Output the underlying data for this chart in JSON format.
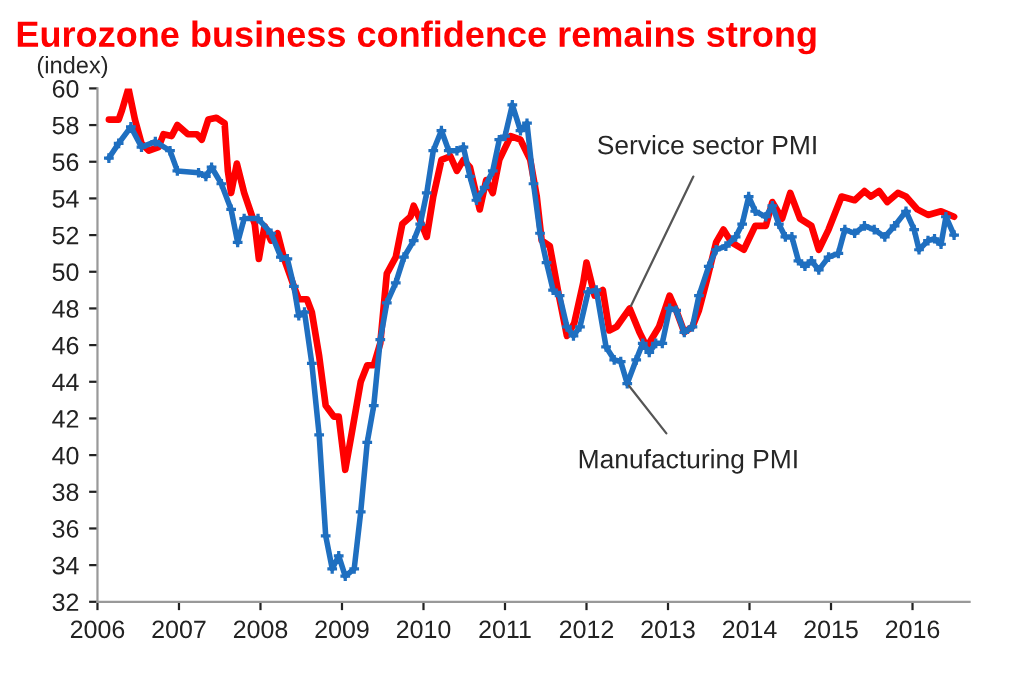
{
  "chart_data": {
    "type": "line",
    "title": "Eurozone business confidence remains strong",
    "ylabel": "(index)",
    "xlim": [
      2006,
      2016.7
    ],
    "xticks": [
      2006,
      2007,
      2008,
      2009,
      2010,
      2011,
      2012,
      2013,
      2014,
      2015,
      2016
    ],
    "ylim": [
      32,
      60
    ],
    "yticks": [
      32,
      34,
      36,
      38,
      40,
      42,
      44,
      46,
      48,
      50,
      52,
      54,
      56,
      58,
      60
    ],
    "grid": false,
    "line_style": "solid",
    "annotations": [
      {
        "text": "Service sector PMI",
        "x": 2012.53,
        "y": 48.0
      },
      {
        "text": "Manufacturing PMI",
        "x": 2012.5,
        "y": 43.9
      }
    ],
    "series": [
      {
        "color": "#ff0000",
        "marker": "none",
        "x": [
          2006.14,
          2006.26,
          2006.3,
          2006.38,
          2006.46,
          2006.54,
          2006.63,
          2006.75,
          2006.81,
          2006.91,
          2006.98,
          2007.11,
          2007.22,
          2007.28,
          2007.36,
          2007.46,
          2007.56,
          2007.6,
          2007.64,
          2007.71,
          2007.8,
          2007.93,
          2007.98,
          2008.05,
          2008.13,
          2008.21,
          2008.29,
          2008.41,
          2008.47,
          2008.57,
          2008.63,
          2008.72,
          2008.8,
          2008.9,
          2008.96,
          2009.04,
          2009.12,
          2009.23,
          2009.31,
          2009.39,
          2009.47,
          2009.55,
          2009.66,
          2009.74,
          2009.84,
          2009.88,
          2009.96,
          2010.04,
          2010.12,
          2010.22,
          2010.33,
          2010.41,
          2010.49,
          2010.57,
          2010.69,
          2010.77,
          2010.85,
          2010.93,
          2011.07,
          2011.19,
          2011.31,
          2011.39,
          2011.45,
          2011.55,
          2011.67,
          2011.76,
          2011.85,
          2011.96,
          2012.0,
          2012.1,
          2012.2,
          2012.28,
          2012.37,
          2012.53,
          2012.65,
          2012.74,
          2012.89,
          2013.02,
          2013.1,
          2013.2,
          2013.3,
          2013.38,
          2013.48,
          2013.59,
          2013.68,
          2013.78,
          2013.93,
          2014.07,
          2014.2,
          2014.28,
          2014.4,
          2014.5,
          2014.62,
          2014.76,
          2014.85,
          2014.97,
          2015.13,
          2015.29,
          2015.41,
          2015.49,
          2015.59,
          2015.69,
          2015.82,
          2015.92,
          2016.06,
          2016.19,
          2016.35,
          2016.51
        ],
        "values": [
          58.3,
          58.3,
          58.8,
          60.0,
          58.3,
          57.0,
          56.6,
          56.8,
          57.5,
          57.4,
          58.0,
          57.5,
          57.5,
          57.2,
          58.3,
          58.4,
          58.1,
          55.5,
          54.3,
          55.9,
          54.3,
          52.6,
          50.7,
          52.5,
          51.7,
          52.1,
          50.7,
          49.2,
          48.5,
          48.5,
          47.8,
          45.4,
          42.7,
          42.1,
          42.1,
          39.2,
          41.2,
          44.0,
          44.9,
          44.9,
          46.1,
          49.9,
          50.8,
          52.6,
          53.0,
          53.6,
          52.8,
          51.9,
          54.1,
          56.1,
          56.3,
          55.5,
          56.1,
          55.7,
          53.4,
          55.0,
          54.3,
          56.1,
          57.4,
          57.2,
          56.1,
          54.1,
          51.7,
          51.4,
          48.5,
          46.5,
          47.2,
          49.4,
          50.5,
          48.7,
          49.0,
          46.8,
          47.0,
          48.0,
          46.7,
          45.9,
          47.0,
          48.7,
          47.9,
          46.7,
          47.0,
          47.9,
          49.6,
          51.6,
          52.3,
          51.6,
          51.2,
          52.5,
          52.5,
          53.8,
          52.9,
          54.3,
          52.9,
          52.5,
          51.2,
          52.3,
          54.1,
          53.9,
          54.4,
          54.1,
          54.4,
          53.8,
          54.3,
          54.1,
          53.4,
          53.1,
          53.3,
          53.0
        ]
      },
      {
        "color": "#1f6fc0",
        "marker": "cross",
        "x": [
          2006.14,
          2006.26,
          2006.41,
          2006.54,
          2006.71,
          2006.89,
          2006.98,
          2007.24,
          2007.33,
          2007.4,
          2007.52,
          2007.64,
          2007.72,
          2007.8,
          2007.97,
          2008.13,
          2008.25,
          2008.33,
          2008.41,
          2008.47,
          2008.54,
          2008.63,
          2008.72,
          2008.8,
          2008.88,
          2008.96,
          2009.04,
          2009.15,
          2009.23,
          2009.31,
          2009.39,
          2009.47,
          2009.55,
          2009.66,
          2009.76,
          2009.88,
          2009.96,
          2010.04,
          2010.12,
          2010.22,
          2010.31,
          2010.41,
          2010.49,
          2010.57,
          2010.65,
          2010.75,
          2010.85,
          2010.93,
          2011.0,
          2011.09,
          2011.19,
          2011.27,
          2011.35,
          2011.43,
          2011.51,
          2011.59,
          2011.67,
          2011.76,
          2011.84,
          2011.92,
          2012.02,
          2012.12,
          2012.24,
          2012.34,
          2012.42,
          2012.5,
          2012.61,
          2012.69,
          2012.77,
          2012.85,
          2012.93,
          2013.02,
          2013.1,
          2013.2,
          2013.3,
          2013.38,
          2013.5,
          2013.59,
          2013.71,
          2013.83,
          2013.91,
          2013.99,
          2014.07,
          2014.2,
          2014.28,
          2014.36,
          2014.44,
          2014.52,
          2014.6,
          2014.68,
          2014.76,
          2014.85,
          2014.97,
          2015.09,
          2015.17,
          2015.29,
          2015.41,
          2015.53,
          2015.66,
          2015.78,
          2015.92,
          2016.02,
          2016.08,
          2016.19,
          2016.27,
          2016.35,
          2016.41,
          2016.51
        ],
        "values": [
          56.2,
          57.0,
          57.9,
          56.8,
          57.1,
          56.6,
          55.5,
          55.4,
          55.2,
          55.7,
          54.8,
          53.4,
          51.6,
          52.9,
          52.9,
          52.1,
          50.8,
          50.7,
          49.2,
          47.6,
          47.8,
          45.0,
          41.1,
          35.6,
          33.8,
          34.5,
          33.4,
          33.8,
          36.9,
          40.7,
          42.7,
          46.3,
          48.3,
          49.4,
          50.8,
          51.7,
          52.6,
          54.3,
          56.6,
          57.7,
          56.6,
          56.6,
          56.8,
          55.2,
          53.9,
          54.6,
          55.5,
          57.2,
          57.4,
          59.1,
          57.7,
          58.1,
          54.8,
          52.1,
          50.5,
          49.0,
          48.7,
          47.0,
          46.5,
          47.0,
          48.9,
          49.0,
          45.9,
          45.2,
          45.1,
          43.9,
          45.2,
          46.1,
          45.6,
          46.1,
          46.1,
          48.0,
          47.9,
          46.7,
          47.0,
          48.7,
          50.3,
          51.2,
          51.4,
          51.9,
          52.6,
          54.1,
          53.3,
          53.0,
          53.6,
          52.6,
          51.9,
          51.9,
          50.6,
          50.3,
          50.6,
          50.1,
          50.8,
          51.0,
          52.3,
          52.1,
          52.5,
          52.3,
          51.9,
          52.5,
          53.3,
          52.3,
          51.2,
          51.7,
          51.8,
          51.5,
          53.0,
          52.0
        ]
      }
    ]
  }
}
